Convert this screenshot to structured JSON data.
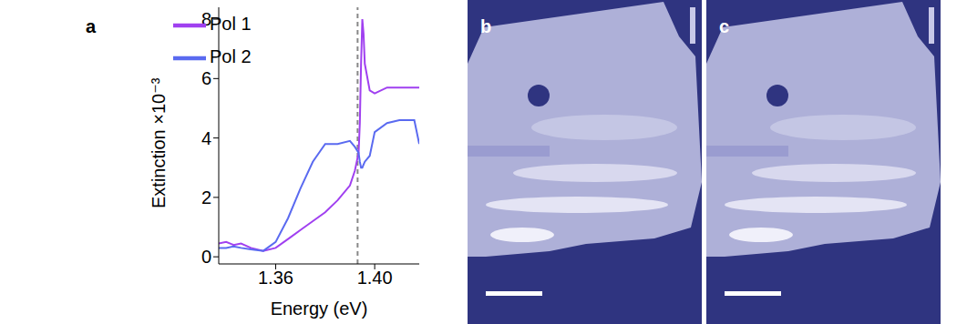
{
  "chart_data": {
    "type": "line",
    "panel_label": "a",
    "x_label": "Energy (eV)",
    "y_label": "Extinction ×10⁻³",
    "x": [
      1.337,
      1.34,
      1.343,
      1.346,
      1.35,
      1.355,
      1.36,
      1.365,
      1.37,
      1.375,
      1.38,
      1.385,
      1.39,
      1.392,
      1.3935,
      1.394,
      1.3945,
      1.395,
      1.3955,
      1.396,
      1.398,
      1.4,
      1.405,
      1.41,
      1.416,
      1.418
    ],
    "series": [
      {
        "name": "Pol 1",
        "color": "#a040f0",
        "values": [
          0.45,
          0.5,
          0.4,
          0.45,
          0.3,
          0.2,
          0.3,
          0.6,
          0.9,
          1.2,
          1.5,
          1.9,
          2.4,
          2.9,
          3.5,
          4.5,
          6.5,
          8.0,
          7.5,
          6.5,
          5.6,
          5.5,
          5.7,
          5.7,
          5.7,
          5.7
        ]
      },
      {
        "name": "Pol 2",
        "color": "#5a6af0",
        "values": [
          0.3,
          0.3,
          0.35,
          0.3,
          0.25,
          0.2,
          0.5,
          1.3,
          2.3,
          3.2,
          3.8,
          3.8,
          3.9,
          3.7,
          3.5,
          3.2,
          3.0,
          3.0,
          3.1,
          3.2,
          3.4,
          4.2,
          4.5,
          4.6,
          4.6,
          3.8
        ]
      }
    ],
    "xlim": [
      1.337,
      1.418
    ],
    "xticks": [
      1.36,
      {
        "value": 1.4,
        "label": "1.40"
      }
    ],
    "ylim": [
      -0.24,
      8.4
    ],
    "yticks": [
      0,
      2,
      4,
      6,
      8
    ],
    "reference_line": {
      "x": 1.3931,
      "color": "#888888",
      "line_style": "dashed"
    },
    "legend": "upper center",
    "grid": false
  },
  "image_panels": [
    {
      "label": "b"
    },
    {
      "label": "c"
    }
  ]
}
